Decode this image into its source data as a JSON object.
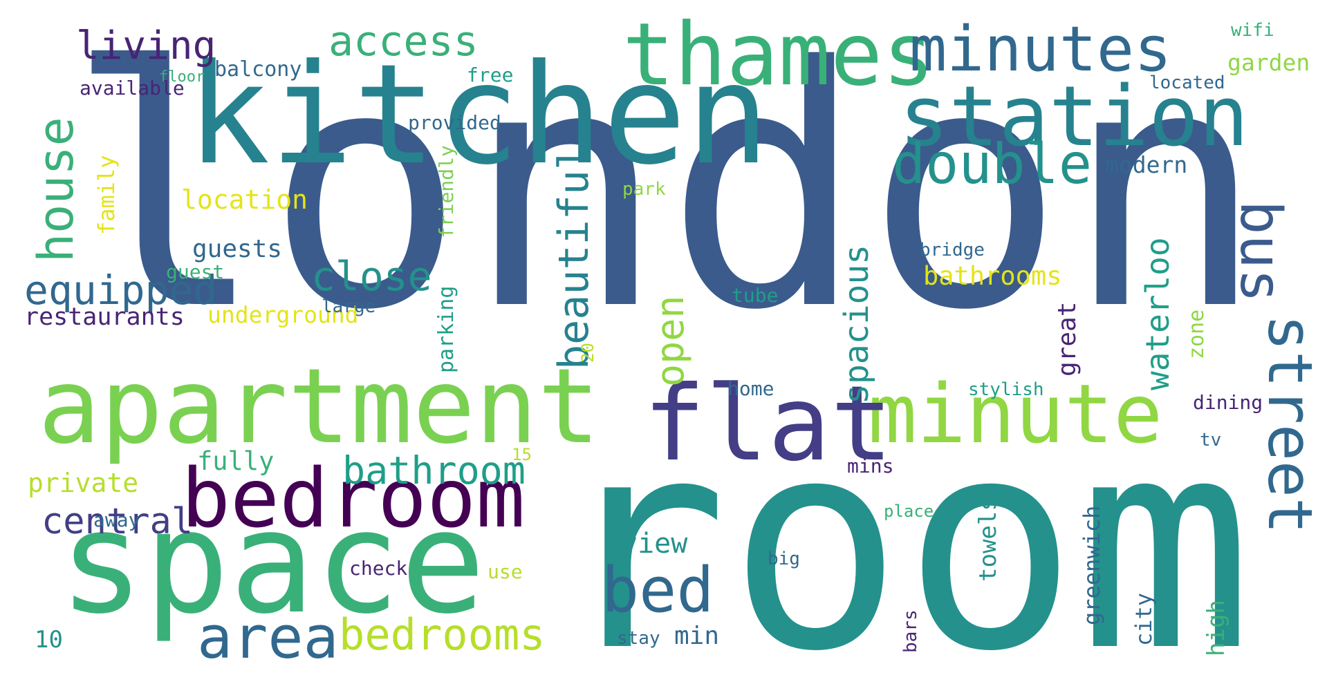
{
  "palette": {
    "c1": "#3b5b8c",
    "c2": "#2d7f8e",
    "c3": "#24918c",
    "c4": "#3ab079",
    "c5": "#5bc263",
    "c6": "#90d743",
    "c7": "#b6de2b",
    "c8": "#e3e418",
    "c9": "#482475",
    "c10": "#440154",
    "c11": "#433e85",
    "c12": "#31688e",
    "c13": "#7ad151",
    "c14": "#1f9e89",
    "c15": "#26828e"
  },
  "words": [
    {
      "text": "london"
    },
    {
      "text": "room"
    },
    {
      "text": "kitchen"
    },
    {
      "text": "space"
    },
    {
      "text": "apartment"
    },
    {
      "text": "thames"
    },
    {
      "text": "station"
    },
    {
      "text": "minutes"
    },
    {
      "text": "minute"
    },
    {
      "text": "flat"
    },
    {
      "text": "bedroom"
    },
    {
      "text": "bed"
    },
    {
      "text": "bedrooms"
    },
    {
      "text": "area"
    },
    {
      "text": "double"
    },
    {
      "text": "living"
    },
    {
      "text": "access"
    },
    {
      "text": "bathroom"
    },
    {
      "text": "equipped"
    },
    {
      "text": "close"
    },
    {
      "text": "central"
    },
    {
      "text": "private"
    },
    {
      "text": "fully"
    },
    {
      "text": "bathrooms"
    },
    {
      "text": "modern"
    },
    {
      "text": "view"
    },
    {
      "text": "min"
    },
    {
      "text": "10"
    },
    {
      "text": "location"
    },
    {
      "text": "guests"
    },
    {
      "text": "guest"
    },
    {
      "text": "restaurants"
    },
    {
      "text": "underground"
    },
    {
      "text": "available"
    },
    {
      "text": "floor"
    },
    {
      "text": "balcony"
    },
    {
      "text": "free"
    },
    {
      "text": "provided"
    },
    {
      "text": "park"
    },
    {
      "text": "wifi"
    },
    {
      "text": "garden"
    },
    {
      "text": "located"
    },
    {
      "text": "bridge"
    },
    {
      "text": "tube"
    },
    {
      "text": "large"
    },
    {
      "text": "home"
    },
    {
      "text": "stylish"
    },
    {
      "text": "dining"
    },
    {
      "text": "tv"
    },
    {
      "text": "mins"
    },
    {
      "text": "15"
    },
    {
      "text": "away"
    },
    {
      "text": "place"
    },
    {
      "text": "big"
    },
    {
      "text": "check"
    },
    {
      "text": "use"
    },
    {
      "text": "stay"
    },
    {
      "text": "street"
    },
    {
      "text": "bus"
    },
    {
      "text": "house"
    },
    {
      "text": "open"
    },
    {
      "text": "beautiful"
    },
    {
      "text": "spacious"
    },
    {
      "text": "waterloo"
    },
    {
      "text": "great"
    },
    {
      "text": "zone"
    },
    {
      "text": "parking"
    },
    {
      "text": "friendly"
    },
    {
      "text": "family"
    },
    {
      "text": "20"
    },
    {
      "text": "greenwich"
    },
    {
      "text": "towels"
    },
    {
      "text": "city"
    },
    {
      "text": "high"
    },
    {
      "text": "bars"
    }
  ]
}
